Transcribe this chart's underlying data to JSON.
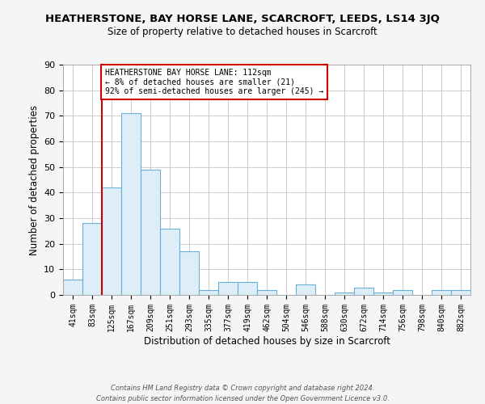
{
  "title": "HEATHERSTONE, BAY HORSE LANE, SCARCROFT, LEEDS, LS14 3JQ",
  "subtitle": "Size of property relative to detached houses in Scarcroft",
  "xlabel": "Distribution of detached houses by size in Scarcroft",
  "ylabel": "Number of detached properties",
  "bin_labels": [
    "41sqm",
    "83sqm",
    "125sqm",
    "167sqm",
    "209sqm",
    "251sqm",
    "293sqm",
    "335sqm",
    "377sqm",
    "419sqm",
    "462sqm",
    "504sqm",
    "546sqm",
    "588sqm",
    "630sqm",
    "672sqm",
    "714sqm",
    "756sqm",
    "798sqm",
    "840sqm",
    "882sqm"
  ],
  "bar_heights": [
    6,
    28,
    42,
    71,
    49,
    26,
    17,
    2,
    5,
    5,
    2,
    0,
    4,
    0,
    1,
    3,
    1,
    2,
    0,
    2,
    2
  ],
  "bar_color": "#ddeef8",
  "bar_edge_color": "#6baed6",
  "vline_color": "#cc0000",
  "annotation_text": "HEATHERSTONE BAY HORSE LANE: 112sqm\n← 8% of detached houses are smaller (21)\n92% of semi-detached houses are larger (245) →",
  "annotation_box_color": "#ffffff",
  "annotation_box_edge": "#cc0000",
  "ylim": [
    0,
    90
  ],
  "yticks": [
    0,
    10,
    20,
    30,
    40,
    50,
    60,
    70,
    80,
    90
  ],
  "footer_line1": "Contains HM Land Registry data © Crown copyright and database right 2024.",
  "footer_line2": "Contains public sector information licensed under the Open Government Licence v3.0.",
  "bg_color": "#f5f5f5",
  "plot_bg_color": "#ffffff",
  "grid_color": "#cccccc",
  "title_fontsize": 9.5,
  "subtitle_fontsize": 8.5
}
